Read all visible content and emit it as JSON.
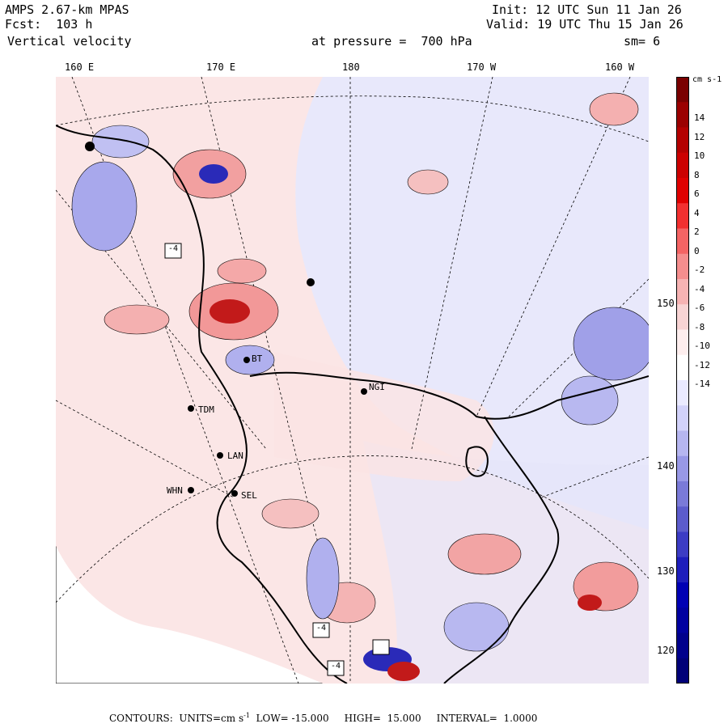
{
  "header": {
    "line1_left": "AMPS 2.67-km MPAS",
    "line2_left": "Fcst:  103 h",
    "line3_left": "Vertical velocity",
    "line3_mid": "at pressure =  700 hPa",
    "line1_right": "Init: 12 UTC Sun 11 Jan 26",
    "line2_right": "Valid: 19 UTC Thu 15 Jan 26",
    "line3_right": "sm= 6"
  },
  "top_longitudes": [
    "160 E",
    "170 E",
    "180",
    "170 W",
    "160 W"
  ],
  "right_longitudes": [
    "150 W",
    "140 W",
    "130 W",
    "120 W"
  ],
  "stations": [
    {
      "id": "tdm",
      "label": "TDM"
    },
    {
      "id": "lan",
      "label": "LAN"
    },
    {
      "id": "whn",
      "label": "WHN"
    },
    {
      "id": "sel",
      "label": "SEL"
    },
    {
      "id": "ng",
      "label": "NGI"
    },
    {
      "id": "bt",
      "label": "BT"
    }
  ],
  "min_markers": [
    "-4",
    "-4",
    "-4"
  ],
  "colorbar": {
    "units": "cm s-1",
    "labels": [
      "14",
      "12",
      "10",
      "8",
      "6",
      "4",
      "2",
      "0",
      "-2",
      "-4",
      "-6",
      "-8",
      "-10",
      "-12",
      "-14"
    ],
    "colors": [
      "#7a0000",
      "#9b0000",
      "#b40000",
      "#cc0000",
      "#e00000",
      "#f23030",
      "#f46464",
      "#f58e8e",
      "#f6b3b3",
      "#f8d4d4",
      "#fdeeee",
      "#ffffff",
      "#eaeaff",
      "#d2d2fa",
      "#b6b6f0",
      "#9898e6",
      "#7a7ad8",
      "#5c5ccc",
      "#3c3cc4",
      "#1e1ebc",
      "#0000b4",
      "#0000a0",
      "#00008c",
      "#000078"
    ]
  },
  "footer": {
    "contours": "CONTOURS:  UNITS=cm s",
    "superscript": "-1",
    "rest": "  LOW= -15.000     HIGH=  15.000     INTERVAL=  1.0000"
  },
  "colors": {
    "pos_light": "#fbe3e3",
    "neg_light": "#e3e3fb",
    "pos_mid": "#f2a7a7",
    "neg_mid": "#9b9be6",
    "pos_strong": "#d02020",
    "neg_strong": "#2a2ab8"
  }
}
